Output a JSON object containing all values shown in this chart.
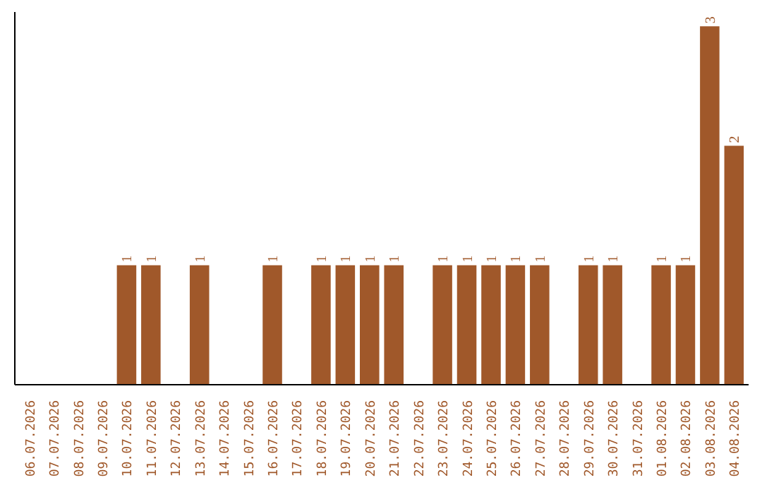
{
  "chart_data": {
    "type": "bar",
    "color": "#a0582a",
    "categories": [
      "06.07.2026",
      "07.07.2026",
      "08.07.2026",
      "09.07.2026",
      "10.07.2026",
      "11.07.2026",
      "12.07.2026",
      "13.07.2026",
      "14.07.2026",
      "15.07.2026",
      "16.07.2026",
      "17.07.2026",
      "18.07.2026",
      "19.07.2026",
      "20.07.2026",
      "21.07.2026",
      "22.07.2026",
      "23.07.2026",
      "24.07.2026",
      "25.07.2026",
      "26.07.2026",
      "27.07.2026",
      "28.07.2026",
      "29.07.2026",
      "30.07.2026",
      "31.07.2026",
      "01.08.2026",
      "02.08.2026",
      "03.08.2026",
      "04.08.2026"
    ],
    "values": [
      0,
      0,
      0,
      0,
      1,
      1,
      0,
      1,
      0,
      0,
      1,
      0,
      1,
      1,
      1,
      1,
      0,
      1,
      1,
      1,
      1,
      1,
      0,
      1,
      1,
      0,
      1,
      1,
      3,
      2
    ],
    "value_labels": [
      null,
      null,
      null,
      null,
      "1",
      "1",
      null,
      "1",
      null,
      null,
      "1",
      null,
      "1",
      "1",
      "1",
      "1",
      null,
      "1",
      "1",
      "1",
      "1",
      "1",
      null,
      "1",
      "1",
      null,
      "1",
      "1",
      "3",
      "2"
    ],
    "grid": false
  }
}
